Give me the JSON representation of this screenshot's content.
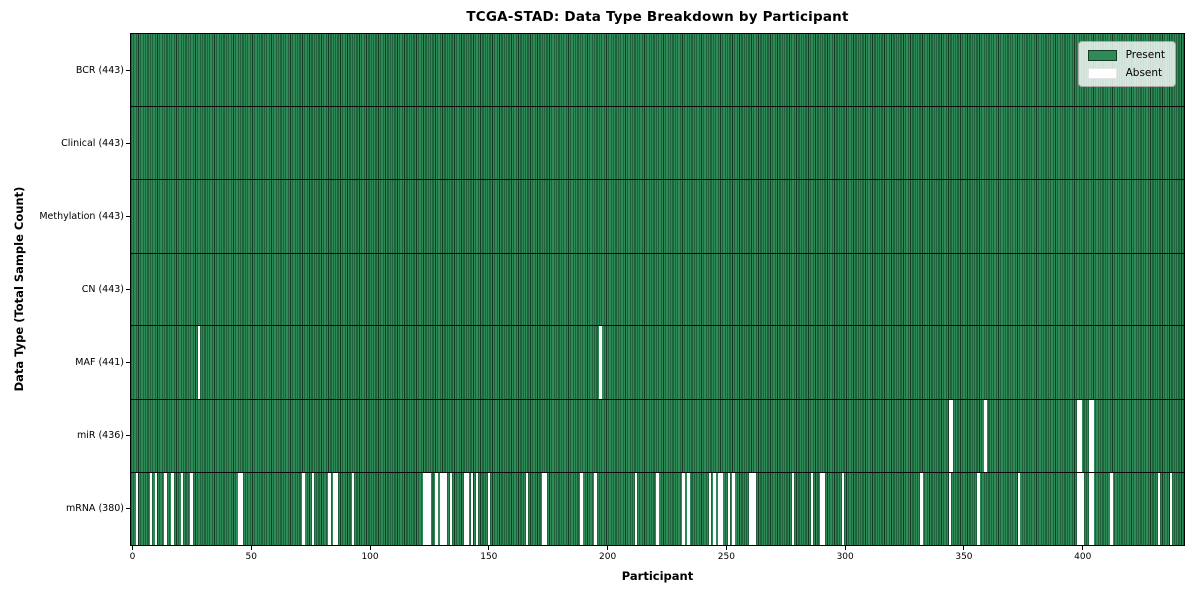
{
  "title": "TCGA-STAD: Data Type Breakdown by Participant",
  "axes": {
    "xlabel": "Participant",
    "ylabel": "Data Type (Total Sample Count)"
  },
  "legend": {
    "items": [
      {
        "label": "Present",
        "color": "#2e8b57",
        "border": "#163b25"
      },
      {
        "label": "Absent",
        "color": "#ffffff",
        "border": "rgba(0,0,0,0.10)"
      }
    ]
  },
  "colors": {
    "present": "#2e8b57",
    "absent": "#ffffff",
    "cell_edge": "#133a22",
    "spine": "#000000"
  },
  "chart_data": {
    "type": "heatmap",
    "title": "TCGA-STAD: Data Type Breakdown by Participant",
    "xlabel": "Participant",
    "ylabel": "Data Type (Total Sample Count)",
    "x_range": [
      0,
      443
    ],
    "n_participants": 443,
    "x_ticks": [
      0,
      50,
      100,
      150,
      200,
      250,
      300,
      350,
      400
    ],
    "legend_position": "upper right",
    "grid": false,
    "value_encoding": {
      "present": "#2e8b57",
      "absent": "#ffffff"
    },
    "rows": [
      {
        "label": "BCR (443)",
        "data_type": "BCR",
        "present_count": 443,
        "absent_participants": []
      },
      {
        "label": "Clinical (443)",
        "data_type": "Clinical",
        "present_count": 443,
        "absent_participants": []
      },
      {
        "label": "Methylation (443)",
        "data_type": "Methylation",
        "present_count": 443,
        "absent_participants": []
      },
      {
        "label": "CN (443)",
        "data_type": "CN",
        "present_count": 443,
        "absent_participants": []
      },
      {
        "label": "MAF (441)",
        "data_type": "MAF",
        "present_count": 441,
        "absent_participants": [
          28,
          197
        ]
      },
      {
        "label": "miR (436)",
        "data_type": "miR",
        "present_count": 436,
        "absent_participants": [
          344,
          345,
          359,
          398,
          399,
          403,
          404
        ]
      },
      {
        "label": "mRNA (380)",
        "data_type": "mRNA",
        "present_count": 380,
        "absent_participants": [
          2,
          8,
          10,
          14,
          17,
          21,
          25,
          45,
          46,
          72,
          76,
          83,
          85,
          86,
          93,
          123,
          124,
          125,
          128,
          130,
          131,
          132,
          134,
          140,
          141,
          143,
          145,
          150,
          166,
          173,
          174,
          189,
          195,
          212,
          221,
          232,
          234,
          243,
          245,
          247,
          248,
          251,
          253,
          260,
          261,
          262,
          278,
          286,
          290,
          291,
          299,
          332,
          344,
          356,
          373,
          398,
          399,
          400,
          403,
          404,
          412,
          432,
          437
        ]
      }
    ]
  }
}
